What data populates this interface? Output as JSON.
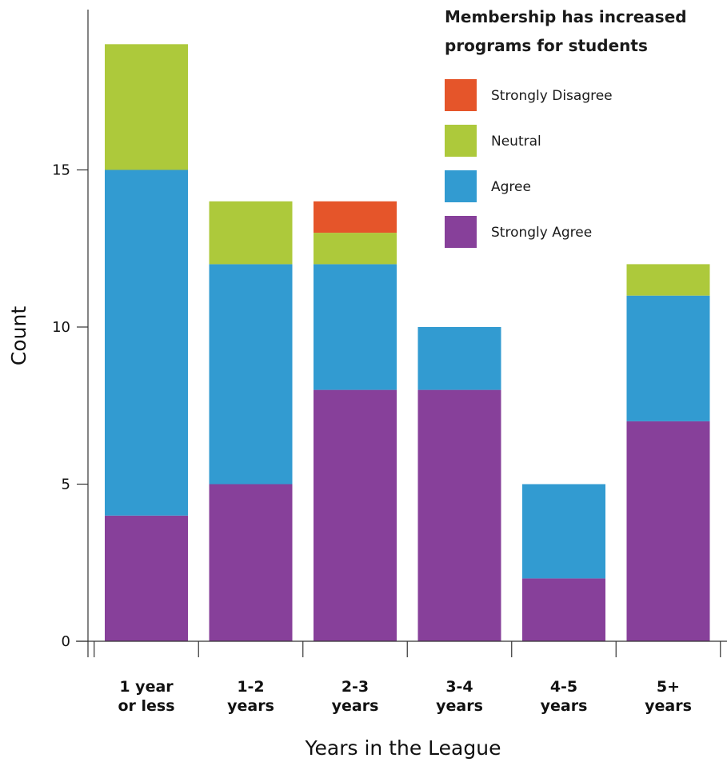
{
  "chart_data": {
    "type": "bar",
    "stacked": true,
    "categories": [
      [
        "1 year",
        "or less"
      ],
      [
        "1-2",
        "years"
      ],
      [
        "2-3",
        "years"
      ],
      [
        "3-4",
        "years"
      ],
      [
        "4-5",
        "years"
      ],
      [
        "5+",
        "years"
      ]
    ],
    "series": [
      {
        "name": "Strongly Agree",
        "color": "#87409a",
        "values": [
          4,
          5,
          8,
          8,
          2,
          7
        ]
      },
      {
        "name": "Agree",
        "color": "#329bd1",
        "values": [
          11,
          7,
          4,
          2,
          3,
          4
        ]
      },
      {
        "name": "Neutral",
        "color": "#adc93b",
        "values": [
          4,
          2,
          1,
          0,
          0,
          1
        ]
      },
      {
        "name": "Strongly Disagree",
        "color": "#e5552a",
        "values": [
          0,
          0,
          1,
          0,
          0,
          0
        ]
      }
    ],
    "legend_order": [
      "Strongly Disagree",
      "Neutral",
      "Agree",
      "Strongly Agree"
    ],
    "legend_title": [
      "Membership has increased",
      "programs for students"
    ],
    "legend_position": "top-right",
    "xlabel": "Years in the League",
    "ylabel": "Count",
    "ylim": [
      0,
      20
    ],
    "yticks": [
      0,
      5,
      10,
      15
    ],
    "grid": false
  }
}
